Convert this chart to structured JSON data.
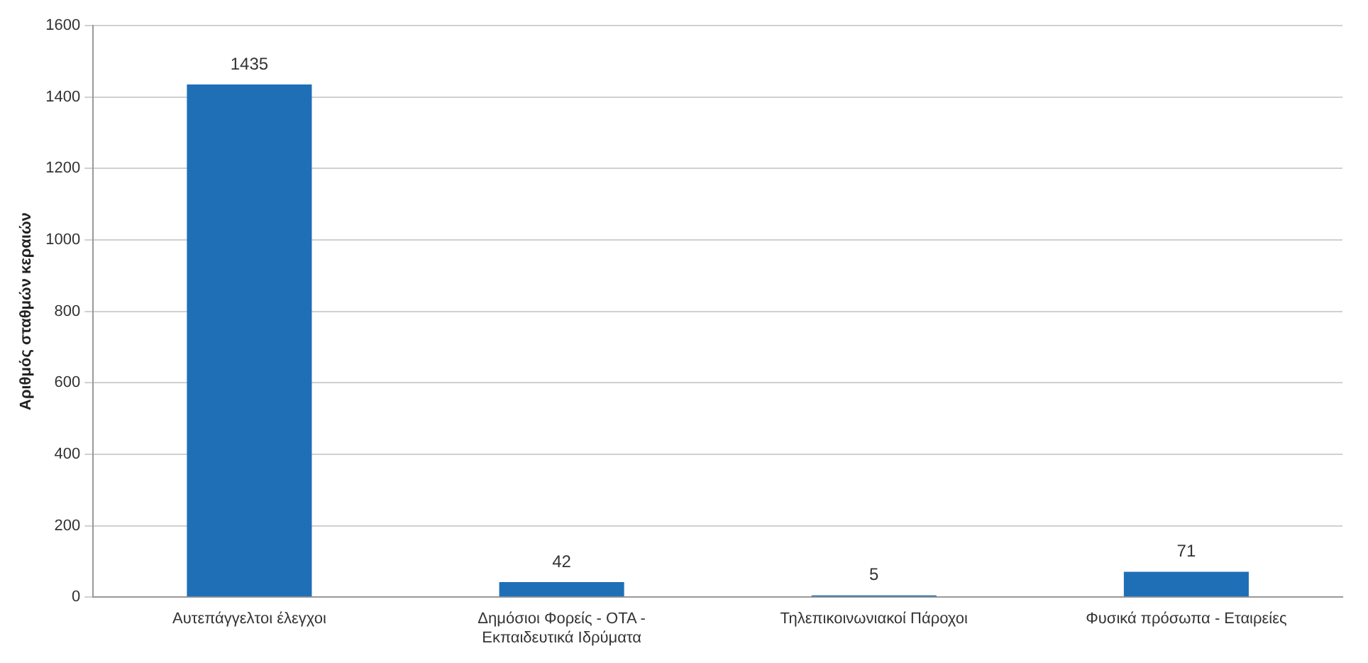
{
  "chart_data": {
    "type": "bar",
    "ylabel": "Αριθμός σταθμών κεραιών",
    "categories": [
      "Αυτεπάγγελτοι έλεγχοι",
      "Δημόσιοι Φορείς - ΟΤΑ - Εκπαιδευτικά Ιδρύματα",
      "Τηλεπικοινωνιακοί Πάροχοι",
      "Φυσικά πρόσωπα - Εταιρείες"
    ],
    "values": [
      1435,
      42,
      5,
      71
    ],
    "color": "#1f6fb6",
    "ylim": [
      0,
      1600
    ],
    "yticks": [
      0,
      200,
      400,
      600,
      800,
      1000,
      1200,
      1400,
      1600
    ],
    "grid": "y",
    "data_labels": true
  }
}
